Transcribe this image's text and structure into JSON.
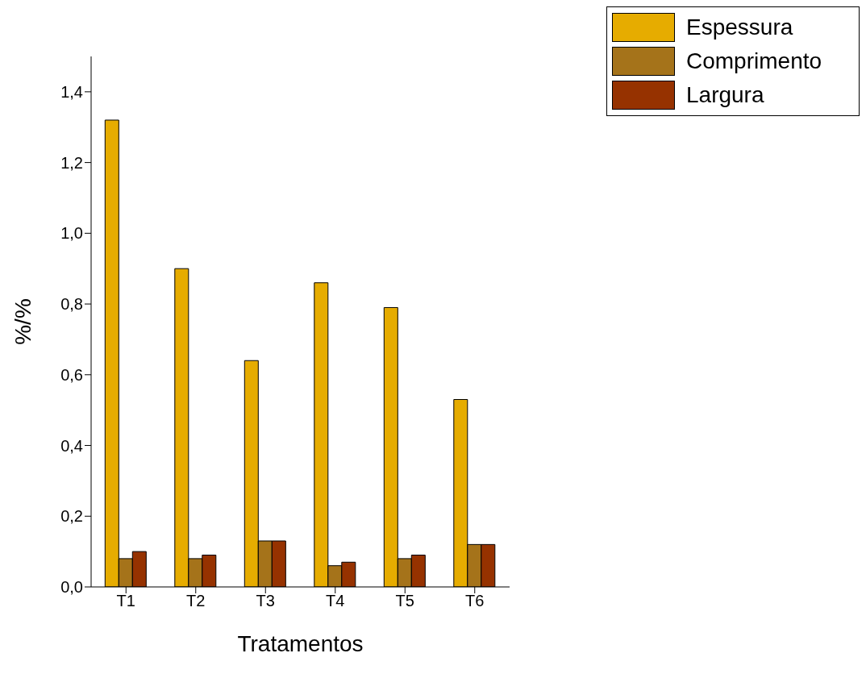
{
  "chart_data": {
    "type": "bar",
    "xlabel": "Tratamentos",
    "ylabel": "%/%",
    "categories": [
      "T1",
      "T2",
      "T3",
      "T4",
      "T5",
      "T6"
    ],
    "series": [
      {
        "name": "Espessura",
        "color": "#e6ac00",
        "values": [
          1.32,
          0.9,
          0.64,
          0.86,
          0.79,
          0.53
        ]
      },
      {
        "name": "Comprimento",
        "color": "#a5731a",
        "values": [
          0.08,
          0.08,
          0.13,
          0.06,
          0.08,
          0.12
        ]
      },
      {
        "name": "Largura",
        "color": "#963200",
        "values": [
          0.1,
          0.09,
          0.13,
          0.07,
          0.09,
          0.12
        ]
      }
    ],
    "ylim": [
      0,
      1.5
    ],
    "yticks": [
      {
        "value": 0,
        "label": "0,0"
      },
      {
        "value": 0.2,
        "label": "0,2"
      },
      {
        "value": 0.4,
        "label": "0,4"
      },
      {
        "value": 0.6,
        "label": "0,6"
      },
      {
        "value": 0.8,
        "label": "0,8"
      },
      {
        "value": 1.0,
        "label": "1,0"
      },
      {
        "value": 1.2,
        "label": "1,2"
      },
      {
        "value": 1.4,
        "label": "1,4"
      }
    ],
    "grid": false,
    "legend": "top right"
  }
}
